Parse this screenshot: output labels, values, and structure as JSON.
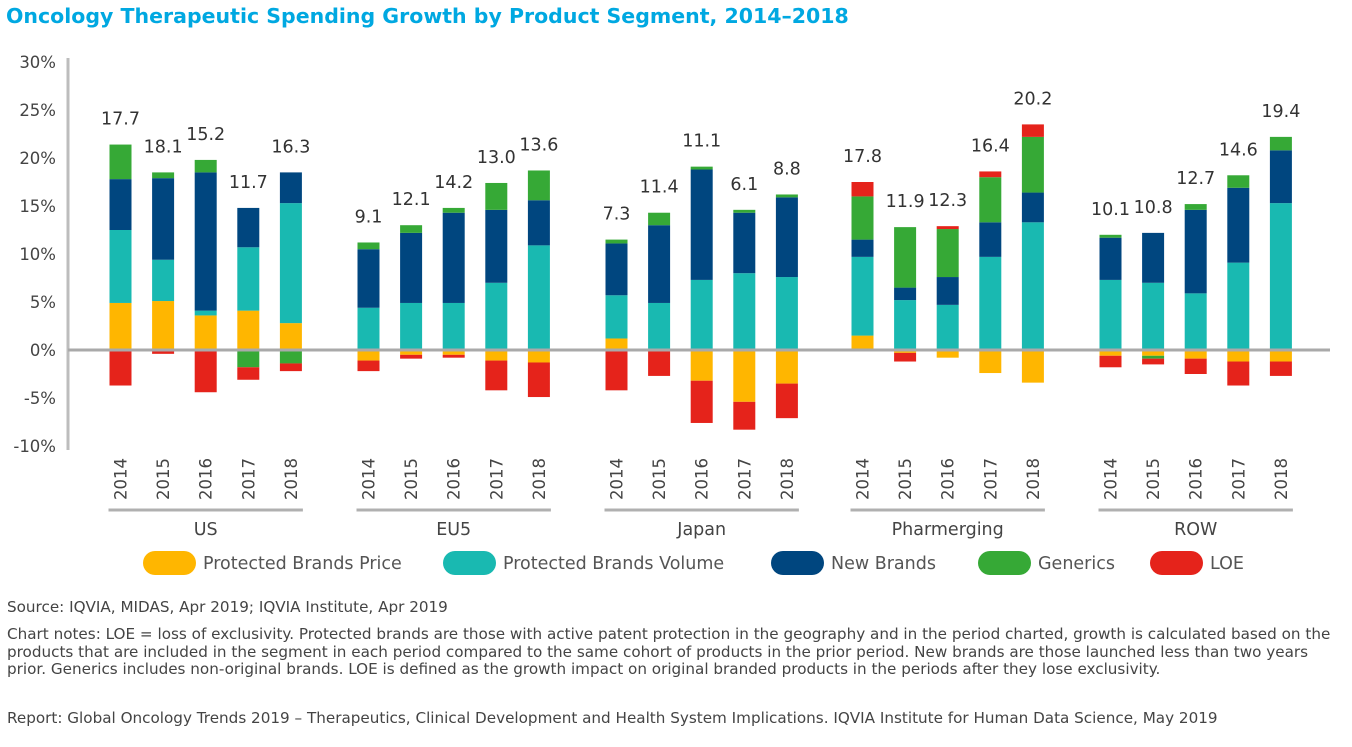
{
  "chart_data": {
    "type": "bar",
    "stacked": true,
    "title": "Oncology Therapeutic Spending Growth by Product Segment, 2014–2018",
    "ylim": [
      -10,
      30
    ],
    "yticks": [
      {
        "value": 30,
        "label": "30%"
      },
      {
        "value": 25,
        "label": "25%"
      },
      {
        "value": 20,
        "label": "20%"
      },
      {
        "value": 15,
        "label": "15%"
      },
      {
        "value": 10,
        "label": "10%"
      },
      {
        "value": 5,
        "label": "5%"
      },
      {
        "value": 0,
        "label": "0%"
      },
      {
        "value": -5,
        "label": "-5%"
      },
      {
        "value": -10,
        "label": "-10%"
      }
    ],
    "years": [
      "2014",
      "2015",
      "2016",
      "2017",
      "2018"
    ],
    "series": [
      {
        "key": "price",
        "name": "Protected Brands Price",
        "color": "#FFB600"
      },
      {
        "key": "volume",
        "name": "Protected Brands Volume",
        "color": "#19B9B1"
      },
      {
        "key": "new",
        "name": "New Brands",
        "color": "#00467F"
      },
      {
        "key": "generics",
        "name": "Generics",
        "color": "#36A936"
      },
      {
        "key": "loe",
        "name": "LOE",
        "color": "#E5231B"
      }
    ],
    "groups": [
      {
        "name": "US",
        "bars": [
          {
            "year": "2014",
            "total": "17.7",
            "price": 4.9,
            "volume": 7.6,
            "new": 5.3,
            "generics": 3.6,
            "loe": -3.7
          },
          {
            "year": "2015",
            "total": "18.1",
            "price": 5.1,
            "volume": 4.3,
            "new": 8.5,
            "generics": 0.6,
            "loe": -0.4
          },
          {
            "year": "2016",
            "total": "15.2",
            "price": 3.6,
            "volume": 0.5,
            "new": 14.4,
            "generics": 1.3,
            "loe": -4.4
          },
          {
            "year": "2017",
            "total": "11.7",
            "price": 4.1,
            "volume": 6.6,
            "new": 4.1,
            "generics": -1.8,
            "loe": -1.3
          },
          {
            "year": "2018",
            "total": "16.3",
            "price": 2.8,
            "volume": 12.5,
            "new": 3.2,
            "generics": -1.4,
            "loe": -0.8
          }
        ]
      },
      {
        "name": "EU5",
        "bars": [
          {
            "year": "2014",
            "total": "9.1",
            "price": -1.1,
            "volume": 4.4,
            "new": 6.1,
            "generics": 0.7,
            "loe": -1.1
          },
          {
            "year": "2015",
            "total": "12.1",
            "price": -0.5,
            "volume": 4.9,
            "new": 7.3,
            "generics": 0.8,
            "loe": -0.4
          },
          {
            "year": "2016",
            "total": "14.2",
            "price": -0.5,
            "volume": 4.9,
            "new": 9.4,
            "generics": 0.5,
            "loe": -0.3
          },
          {
            "year": "2017",
            "total": "13.0",
            "price": -1.1,
            "volume": 7.0,
            "new": 7.6,
            "generics": 2.8,
            "loe": -3.1
          },
          {
            "year": "2018",
            "total": "13.6",
            "price": -1.3,
            "volume": 10.9,
            "new": 4.7,
            "generics": 3.1,
            "loe": -3.6
          }
        ]
      },
      {
        "name": "Japan",
        "bars": [
          {
            "year": "2014",
            "total": "7.3",
            "price": 1.2,
            "volume": 4.5,
            "new": 5.4,
            "generics": 0.4,
            "loe": -4.2
          },
          {
            "year": "2015",
            "total": "11.4",
            "price": -0.1,
            "volume": 4.9,
            "new": 8.1,
            "generics": 1.3,
            "loe": -2.6
          },
          {
            "year": "2016",
            "total": "11.1",
            "price": -3.2,
            "volume": 7.3,
            "new": 11.5,
            "generics": 0.3,
            "loe": -4.4
          },
          {
            "year": "2017",
            "total": "6.1",
            "price": -5.4,
            "volume": 8.0,
            "new": 6.3,
            "generics": 0.3,
            "loe": -2.9
          },
          {
            "year": "2018",
            "total": "8.8",
            "price": -3.5,
            "volume": 7.6,
            "new": 8.3,
            "generics": 0.3,
            "loe": -3.6
          }
        ]
      },
      {
        "name": "Pharmerging",
        "bars": [
          {
            "year": "2014",
            "total": "17.8",
            "price": 1.5,
            "volume": 8.2,
            "new": 1.8,
            "generics": 4.5,
            "loe": 1.5
          },
          {
            "year": "2015",
            "total": "11.9",
            "price": -0.3,
            "volume": 5.2,
            "new": 1.3,
            "generics": 6.3,
            "loe": -0.9
          },
          {
            "year": "2016",
            "total": "12.3",
            "price": -0.8,
            "volume": 4.7,
            "new": 2.9,
            "generics": 5.0,
            "loe": 0.3
          },
          {
            "year": "2017",
            "total": "16.4",
            "price": -2.4,
            "volume": 9.7,
            "new": 3.6,
            "generics": 4.7,
            "loe": 0.6
          },
          {
            "year": "2018",
            "total": "20.2",
            "price": -3.4,
            "volume": 13.3,
            "new": 3.1,
            "generics": 5.8,
            "loe": 1.3
          }
        ]
      },
      {
        "name": "ROW",
        "bars": [
          {
            "year": "2014",
            "total": "10.1",
            "price": -0.6,
            "volume": 7.3,
            "new": 4.4,
            "generics": 0.3,
            "loe": -1.2
          },
          {
            "year": "2015",
            "total": "10.8",
            "price": -0.6,
            "volume": 7.0,
            "new": 5.2,
            "generics": -0.3,
            "loe": -0.6
          },
          {
            "year": "2016",
            "total": "12.7",
            "price": -0.9,
            "volume": 5.9,
            "new": 8.7,
            "generics": 0.6,
            "loe": -1.6
          },
          {
            "year": "2017",
            "total": "14.6",
            "price": -1.2,
            "volume": 9.1,
            "new": 7.8,
            "generics": 1.3,
            "loe": -2.5
          },
          {
            "year": "2018",
            "total": "19.4",
            "price": -1.2,
            "volume": 15.3,
            "new": 5.5,
            "generics": 1.4,
            "loe": -1.5
          }
        ]
      }
    ]
  },
  "notes": {
    "source": "Source: IQVIA, MIDAS, Apr 2019; IQVIA Institute, Apr 2019",
    "chart_notes": "Chart notes: LOE = loss of exclusivity. Protected brands are those with active patent protection in the geography and in the period charted, growth is calculated based on the products that are included in the segment in each period compared to the same cohort of products in the prior period. New brands are those launched less than two years prior. Generics includes non-original brands. LOE is defined as the growth impact on original branded products in the periods after they lose exclusivity.",
    "report": "Report: Global Oncology Trends 2019 – Therapeutics, Clinical Development and Health System Implications. IQVIA Institute for Human Data Science, May 2019"
  }
}
